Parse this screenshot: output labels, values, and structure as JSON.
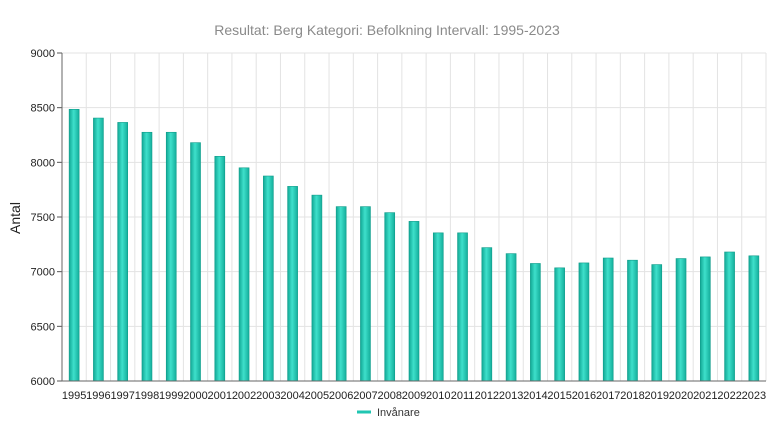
{
  "chart_data": {
    "type": "bar",
    "title": "Resultat: Berg Kategori: Befolkning Intervall: 1995-2023",
    "xlabel": "",
    "ylabel": "Antal",
    "ylim": [
      6000,
      9000
    ],
    "yticks": [
      6000,
      6500,
      7000,
      7500,
      8000,
      8500,
      9000
    ],
    "grid": true,
    "legend_position": "bottom",
    "categories": [
      "1995",
      "1996",
      "1997",
      "1998",
      "1999",
      "2000",
      "2001",
      "2002",
      "2003",
      "2004",
      "2005",
      "2006",
      "2007",
      "2008",
      "2009",
      "2010",
      "2011",
      "2012",
      "2013",
      "2014",
      "2015",
      "2016",
      "2017",
      "2018",
      "2019",
      "2020",
      "2021",
      "2022",
      "2023"
    ],
    "series": [
      {
        "name": "Invånare",
        "color": "#20c6b2",
        "values": [
          8485,
          8405,
          8365,
          8275,
          8275,
          8180,
          8055,
          7950,
          7875,
          7780,
          7700,
          7595,
          7595,
          7540,
          7460,
          7355,
          7355,
          7220,
          7165,
          7075,
          7035,
          7080,
          7125,
          7105,
          7065,
          7120,
          7135,
          7180,
          7145
        ]
      }
    ]
  }
}
